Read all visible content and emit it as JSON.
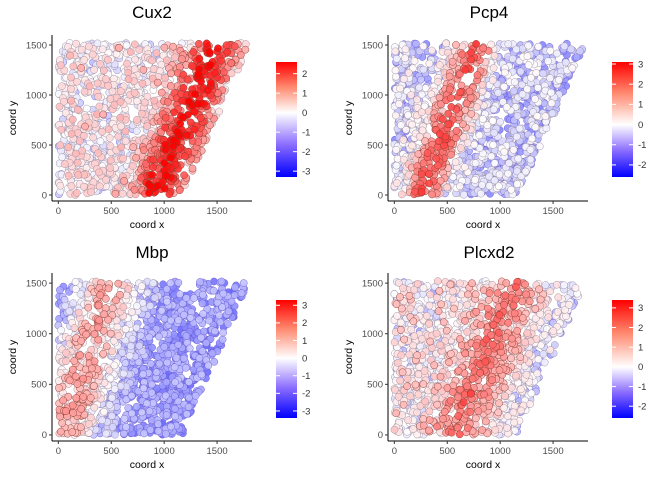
{
  "figure": {
    "layout": "2x2 grid of spatial scatter plots"
  },
  "chart_data": [
    {
      "type": "scatter",
      "title": "Cux2",
      "xlabel": "coord x",
      "ylabel": "coord y",
      "xlim": [
        -60,
        1830
      ],
      "ylim": [
        -60,
        1600
      ],
      "xticks": [
        0,
        500,
        1000,
        1500
      ],
      "yticks": [
        0,
        500,
        1000,
        1500
      ],
      "grid": false,
      "legend": {
        "type": "colorbar",
        "placement": "right",
        "min": -3.3,
        "max": 2.6,
        "ticks": [
          -3,
          -2,
          -1,
          0,
          1,
          2
        ]
      },
      "color_scale": {
        "low": "#0000ff",
        "mid": "#ffffff",
        "high": "#ff0000"
      },
      "description_of_values": "point cloud of ~1500 spots; expression colored",
      "band": {
        "center_x_at_y0": 930,
        "slope_x_per_y": 0.38,
        "half_width": 300,
        "peak": 2.3
      },
      "background": {
        "level": -0.2,
        "left_warm": 0.35
      },
      "extremes": {
        "min": -3.3,
        "max": 2.6
      }
    },
    {
      "type": "scatter",
      "title": "Pcp4",
      "xlabel": "coord x",
      "ylabel": "coord y",
      "xlim": [
        -60,
        1830
      ],
      "ylim": [
        -60,
        1600
      ],
      "xticks": [
        0,
        500,
        1000,
        1500
      ],
      "yticks": [
        0,
        500,
        1000,
        1500
      ],
      "grid": false,
      "legend": {
        "type": "colorbar",
        "placement": "right",
        "min": -2.6,
        "max": 3.1,
        "ticks": [
          -2,
          -1,
          0,
          1,
          2,
          3
        ]
      },
      "color_scale": {
        "low": "#0000ff",
        "mid": "#ffffff",
        "high": "#ff0000"
      },
      "band": {
        "center_x_at_y0": 260,
        "slope_x_per_y": 0.35,
        "half_width": 230,
        "peak": 2.4
      },
      "background": {
        "level": -0.6,
        "left_warm": 0.2
      },
      "extremes": {
        "min": -2.6,
        "max": 3.1
      }
    },
    {
      "type": "scatter",
      "title": "Mbp",
      "xlabel": "coord x",
      "ylabel": "coord y",
      "xlim": [
        -60,
        1830
      ],
      "ylim": [
        -60,
        1600
      ],
      "xticks": [
        0,
        500,
        1000,
        1500
      ],
      "yticks": [
        0,
        500,
        1000,
        1500
      ],
      "grid": false,
      "legend": {
        "type": "colorbar",
        "placement": "right",
        "min": -3.4,
        "max": 3.3,
        "ticks": [
          -3,
          -2,
          -1,
          0,
          1,
          2,
          3
        ]
      },
      "color_scale": {
        "low": "#0000ff",
        "mid": "#ffffff",
        "high": "#ff0000"
      },
      "band": {
        "center_x_at_y0": 40,
        "slope_x_per_y": 0.3,
        "half_width": 420,
        "peak": 2.2
      },
      "background": {
        "level": -1.4,
        "left_warm": 0.0
      },
      "extremes": {
        "min": -3.4,
        "max": 3.3
      }
    },
    {
      "type": "scatter",
      "title": "Plcxd2",
      "xlabel": "coord x",
      "ylabel": "coord y",
      "xlim": [
        -60,
        1830
      ],
      "ylim": [
        -60,
        1600
      ],
      "xticks": [
        0,
        500,
        1000,
        1500
      ],
      "yticks": [
        0,
        500,
        1000,
        1500
      ],
      "grid": false,
      "legend": {
        "type": "colorbar",
        "placement": "right",
        "min": -2.6,
        "max": 3.4,
        "ticks": [
          -2,
          -1,
          0,
          1,
          2,
          3
        ]
      },
      "color_scale": {
        "low": "#0000ff",
        "mid": "#ffffff",
        "high": "#ff0000"
      },
      "band": {
        "center_x_at_y0": 620,
        "slope_x_per_y": 0.37,
        "half_width": 330,
        "peak": 1.6
      },
      "background": {
        "level": -0.3,
        "left_warm": 0.55
      },
      "extremes": {
        "min": -2.6,
        "max": 3.4
      }
    }
  ]
}
